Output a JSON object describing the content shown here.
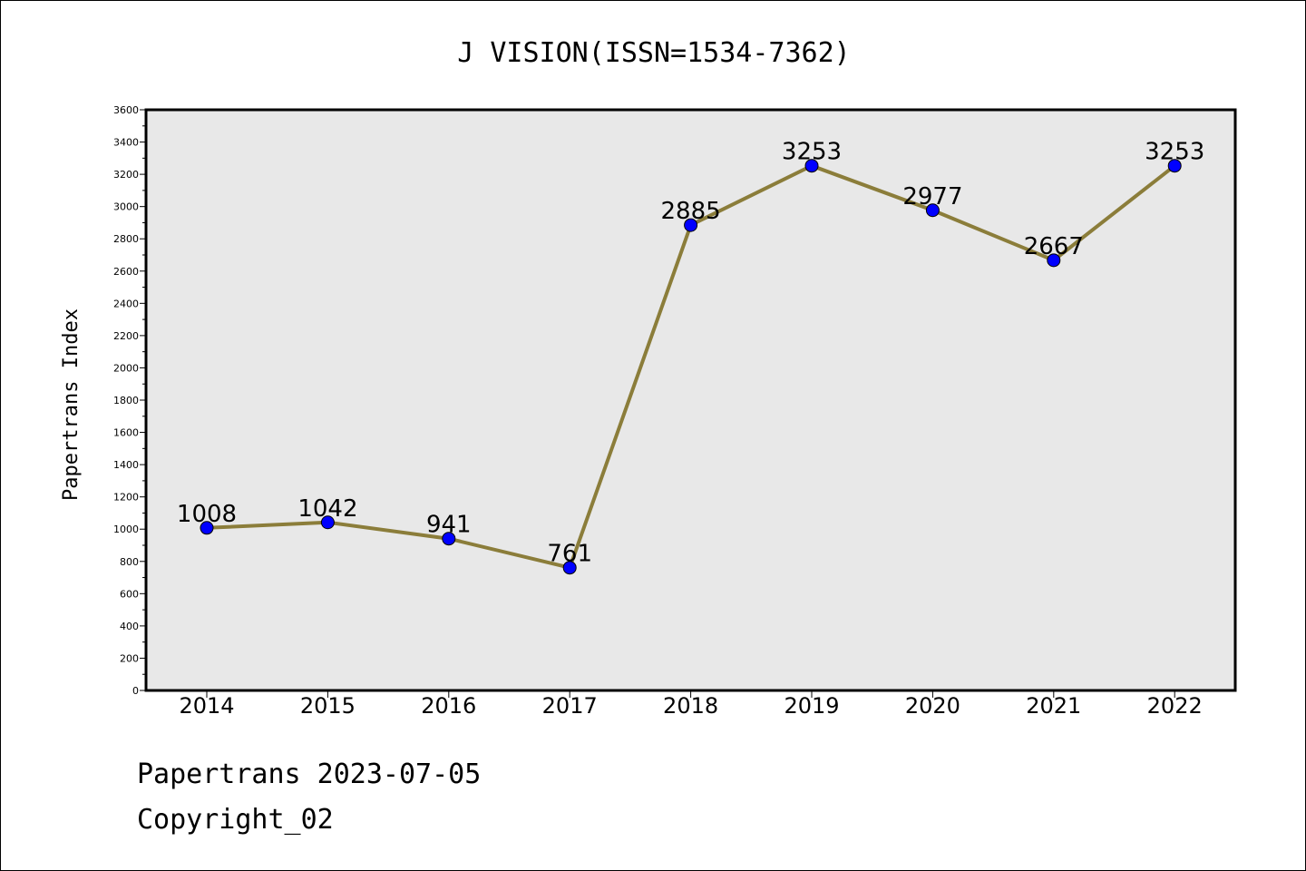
{
  "chart_data": {
    "type": "line",
    "title": "J VISION(ISSN=1534-7362)",
    "xlabel": "",
    "ylabel": "Papertrans Index",
    "categories": [
      "2014",
      "2015",
      "2016",
      "2017",
      "2018",
      "2019",
      "2020",
      "2021",
      "2022"
    ],
    "values": [
      1008,
      1042,
      941,
      761,
      2885,
      3253,
      2977,
      2667,
      3253
    ],
    "ylim": [
      0,
      3600
    ],
    "yticks": [
      0,
      200,
      400,
      600,
      800,
      1000,
      1200,
      1400,
      1600,
      1800,
      2000,
      2200,
      2400,
      2600,
      2800,
      3000,
      3200,
      3400,
      3600
    ],
    "grid": false,
    "line_color": "#8B7D3A",
    "marker_color": "#0000FF",
    "plot_background": "#E8E8E8"
  },
  "footer": {
    "date_text": "Papertrans 2023-07-05",
    "copyright_text": "Copyright_02"
  }
}
